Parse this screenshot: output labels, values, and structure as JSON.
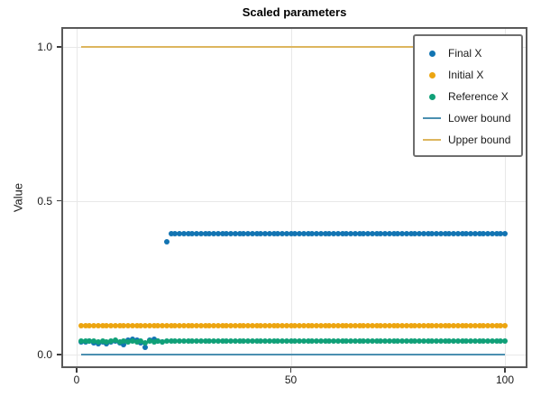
{
  "chart_data": {
    "type": "scatter",
    "title": "Scaled parameters",
    "xlabel": "",
    "ylabel": "Value",
    "xlim": [
      -4,
      105
    ],
    "ylim": [
      -0.044,
      1.064
    ],
    "xticks": [
      0,
      50,
      100
    ],
    "xtick_labels": [
      "0",
      "50",
      "100"
    ],
    "yticks": [
      0,
      0.5,
      1
    ],
    "ytick_labels": [
      "0.0",
      "0.5",
      "1.0"
    ],
    "grid": true,
    "legend_position": "upper right",
    "x": [
      1,
      2,
      3,
      4,
      5,
      6,
      7,
      8,
      9,
      10,
      11,
      12,
      13,
      14,
      15,
      16,
      17,
      18,
      19,
      20,
      21,
      22,
      23,
      24,
      25,
      26,
      27,
      28,
      29,
      30,
      31,
      32,
      33,
      34,
      35,
      36,
      37,
      38,
      39,
      40,
      41,
      42,
      43,
      44,
      45,
      46,
      47,
      48,
      49,
      50,
      51,
      52,
      53,
      54,
      55,
      56,
      57,
      58,
      59,
      60,
      61,
      62,
      63,
      64,
      65,
      66,
      67,
      68,
      69,
      70,
      71,
      72,
      73,
      74,
      75,
      76,
      77,
      78,
      79,
      80,
      81,
      82,
      83,
      84,
      85,
      86,
      87,
      88,
      89,
      90,
      91,
      92,
      93,
      94,
      95,
      96,
      97,
      98,
      99,
      100
    ],
    "series": [
      {
        "name": "Final X",
        "type": "scatter",
        "color": "#1274b2",
        "values": [
          0.042,
          0.04,
          0.044,
          0.038,
          0.036,
          0.042,
          0.035,
          0.041,
          0.044,
          0.037,
          0.033,
          0.046,
          0.05,
          0.048,
          0.038,
          0.023,
          0.046,
          0.05,
          0.044,
          0.041,
          0.366,
          0.392,
          0.392,
          0.392,
          0.392,
          0.392,
          0.392,
          0.392,
          0.392,
          0.392,
          0.392,
          0.392,
          0.392,
          0.392,
          0.392,
          0.392,
          0.392,
          0.392,
          0.392,
          0.392,
          0.392,
          0.392,
          0.392,
          0.392,
          0.392,
          0.392,
          0.392,
          0.392,
          0.392,
          0.392,
          0.392,
          0.392,
          0.392,
          0.392,
          0.392,
          0.392,
          0.392,
          0.392,
          0.392,
          0.392,
          0.392,
          0.392,
          0.392,
          0.392,
          0.392,
          0.392,
          0.392,
          0.392,
          0.392,
          0.392,
          0.392,
          0.392,
          0.392,
          0.392,
          0.392,
          0.392,
          0.392,
          0.392,
          0.392,
          0.392,
          0.392,
          0.392,
          0.392,
          0.392,
          0.392,
          0.392,
          0.392,
          0.392,
          0.392,
          0.392,
          0.392,
          0.392,
          0.392,
          0.392,
          0.392,
          0.392,
          0.392,
          0.392,
          0.392,
          0.392
        ]
      },
      {
        "name": "Initial X",
        "type": "scatter",
        "color": "#eca511",
        "values": [
          0.094,
          0.094,
          0.094,
          0.094,
          0.094,
          0.094,
          0.094,
          0.094,
          0.094,
          0.094,
          0.094,
          0.094,
          0.094,
          0.094,
          0.094,
          0.094,
          0.094,
          0.094,
          0.094,
          0.094,
          0.094,
          0.094,
          0.094,
          0.094,
          0.094,
          0.094,
          0.094,
          0.094,
          0.094,
          0.094,
          0.094,
          0.094,
          0.094,
          0.094,
          0.094,
          0.094,
          0.094,
          0.094,
          0.094,
          0.094,
          0.094,
          0.094,
          0.094,
          0.094,
          0.094,
          0.094,
          0.094,
          0.094,
          0.094,
          0.094,
          0.094,
          0.094,
          0.094,
          0.094,
          0.094,
          0.094,
          0.094,
          0.094,
          0.094,
          0.094,
          0.094,
          0.094,
          0.094,
          0.094,
          0.094,
          0.094,
          0.094,
          0.094,
          0.094,
          0.094,
          0.094,
          0.094,
          0.094,
          0.094,
          0.094,
          0.094,
          0.094,
          0.094,
          0.094,
          0.094,
          0.094,
          0.094,
          0.094,
          0.094,
          0.094,
          0.094,
          0.094,
          0.094,
          0.094,
          0.094,
          0.094,
          0.094,
          0.094,
          0.094,
          0.094,
          0.094,
          0.094,
          0.094,
          0.094,
          0.094
        ]
      },
      {
        "name": "Reference X",
        "type": "scatter",
        "color": "#10a078",
        "values": [
          0.043,
          0.043,
          0.043,
          0.045,
          0.041,
          0.044,
          0.04,
          0.043,
          0.046,
          0.041,
          0.044,
          0.042,
          0.045,
          0.04,
          0.043,
          0.039,
          0.045,
          0.042,
          0.044,
          0.041,
          0.043,
          0.043,
          0.043,
          0.043,
          0.043,
          0.043,
          0.043,
          0.043,
          0.043,
          0.043,
          0.043,
          0.043,
          0.043,
          0.043,
          0.043,
          0.043,
          0.043,
          0.043,
          0.043,
          0.043,
          0.043,
          0.043,
          0.043,
          0.043,
          0.043,
          0.043,
          0.043,
          0.043,
          0.043,
          0.043,
          0.043,
          0.043,
          0.043,
          0.043,
          0.043,
          0.043,
          0.043,
          0.043,
          0.043,
          0.043,
          0.043,
          0.043,
          0.043,
          0.043,
          0.043,
          0.043,
          0.043,
          0.043,
          0.043,
          0.043,
          0.043,
          0.043,
          0.043,
          0.043,
          0.043,
          0.043,
          0.043,
          0.043,
          0.043,
          0.043,
          0.043,
          0.043,
          0.043,
          0.043,
          0.043,
          0.043,
          0.043,
          0.043,
          0.043,
          0.043,
          0.043,
          0.043,
          0.043,
          0.043,
          0.043,
          0.043,
          0.043,
          0.043,
          0.043,
          0.043
        ]
      },
      {
        "name": "Lower bound",
        "type": "line",
        "color": "#4b8fb0",
        "y": 0.0,
        "x_start": 1,
        "x_end": 100
      },
      {
        "name": "Upper bound",
        "type": "line",
        "color": "#ddb65e",
        "y": 1.0,
        "x_start": 1,
        "x_end": 100
      }
    ]
  }
}
